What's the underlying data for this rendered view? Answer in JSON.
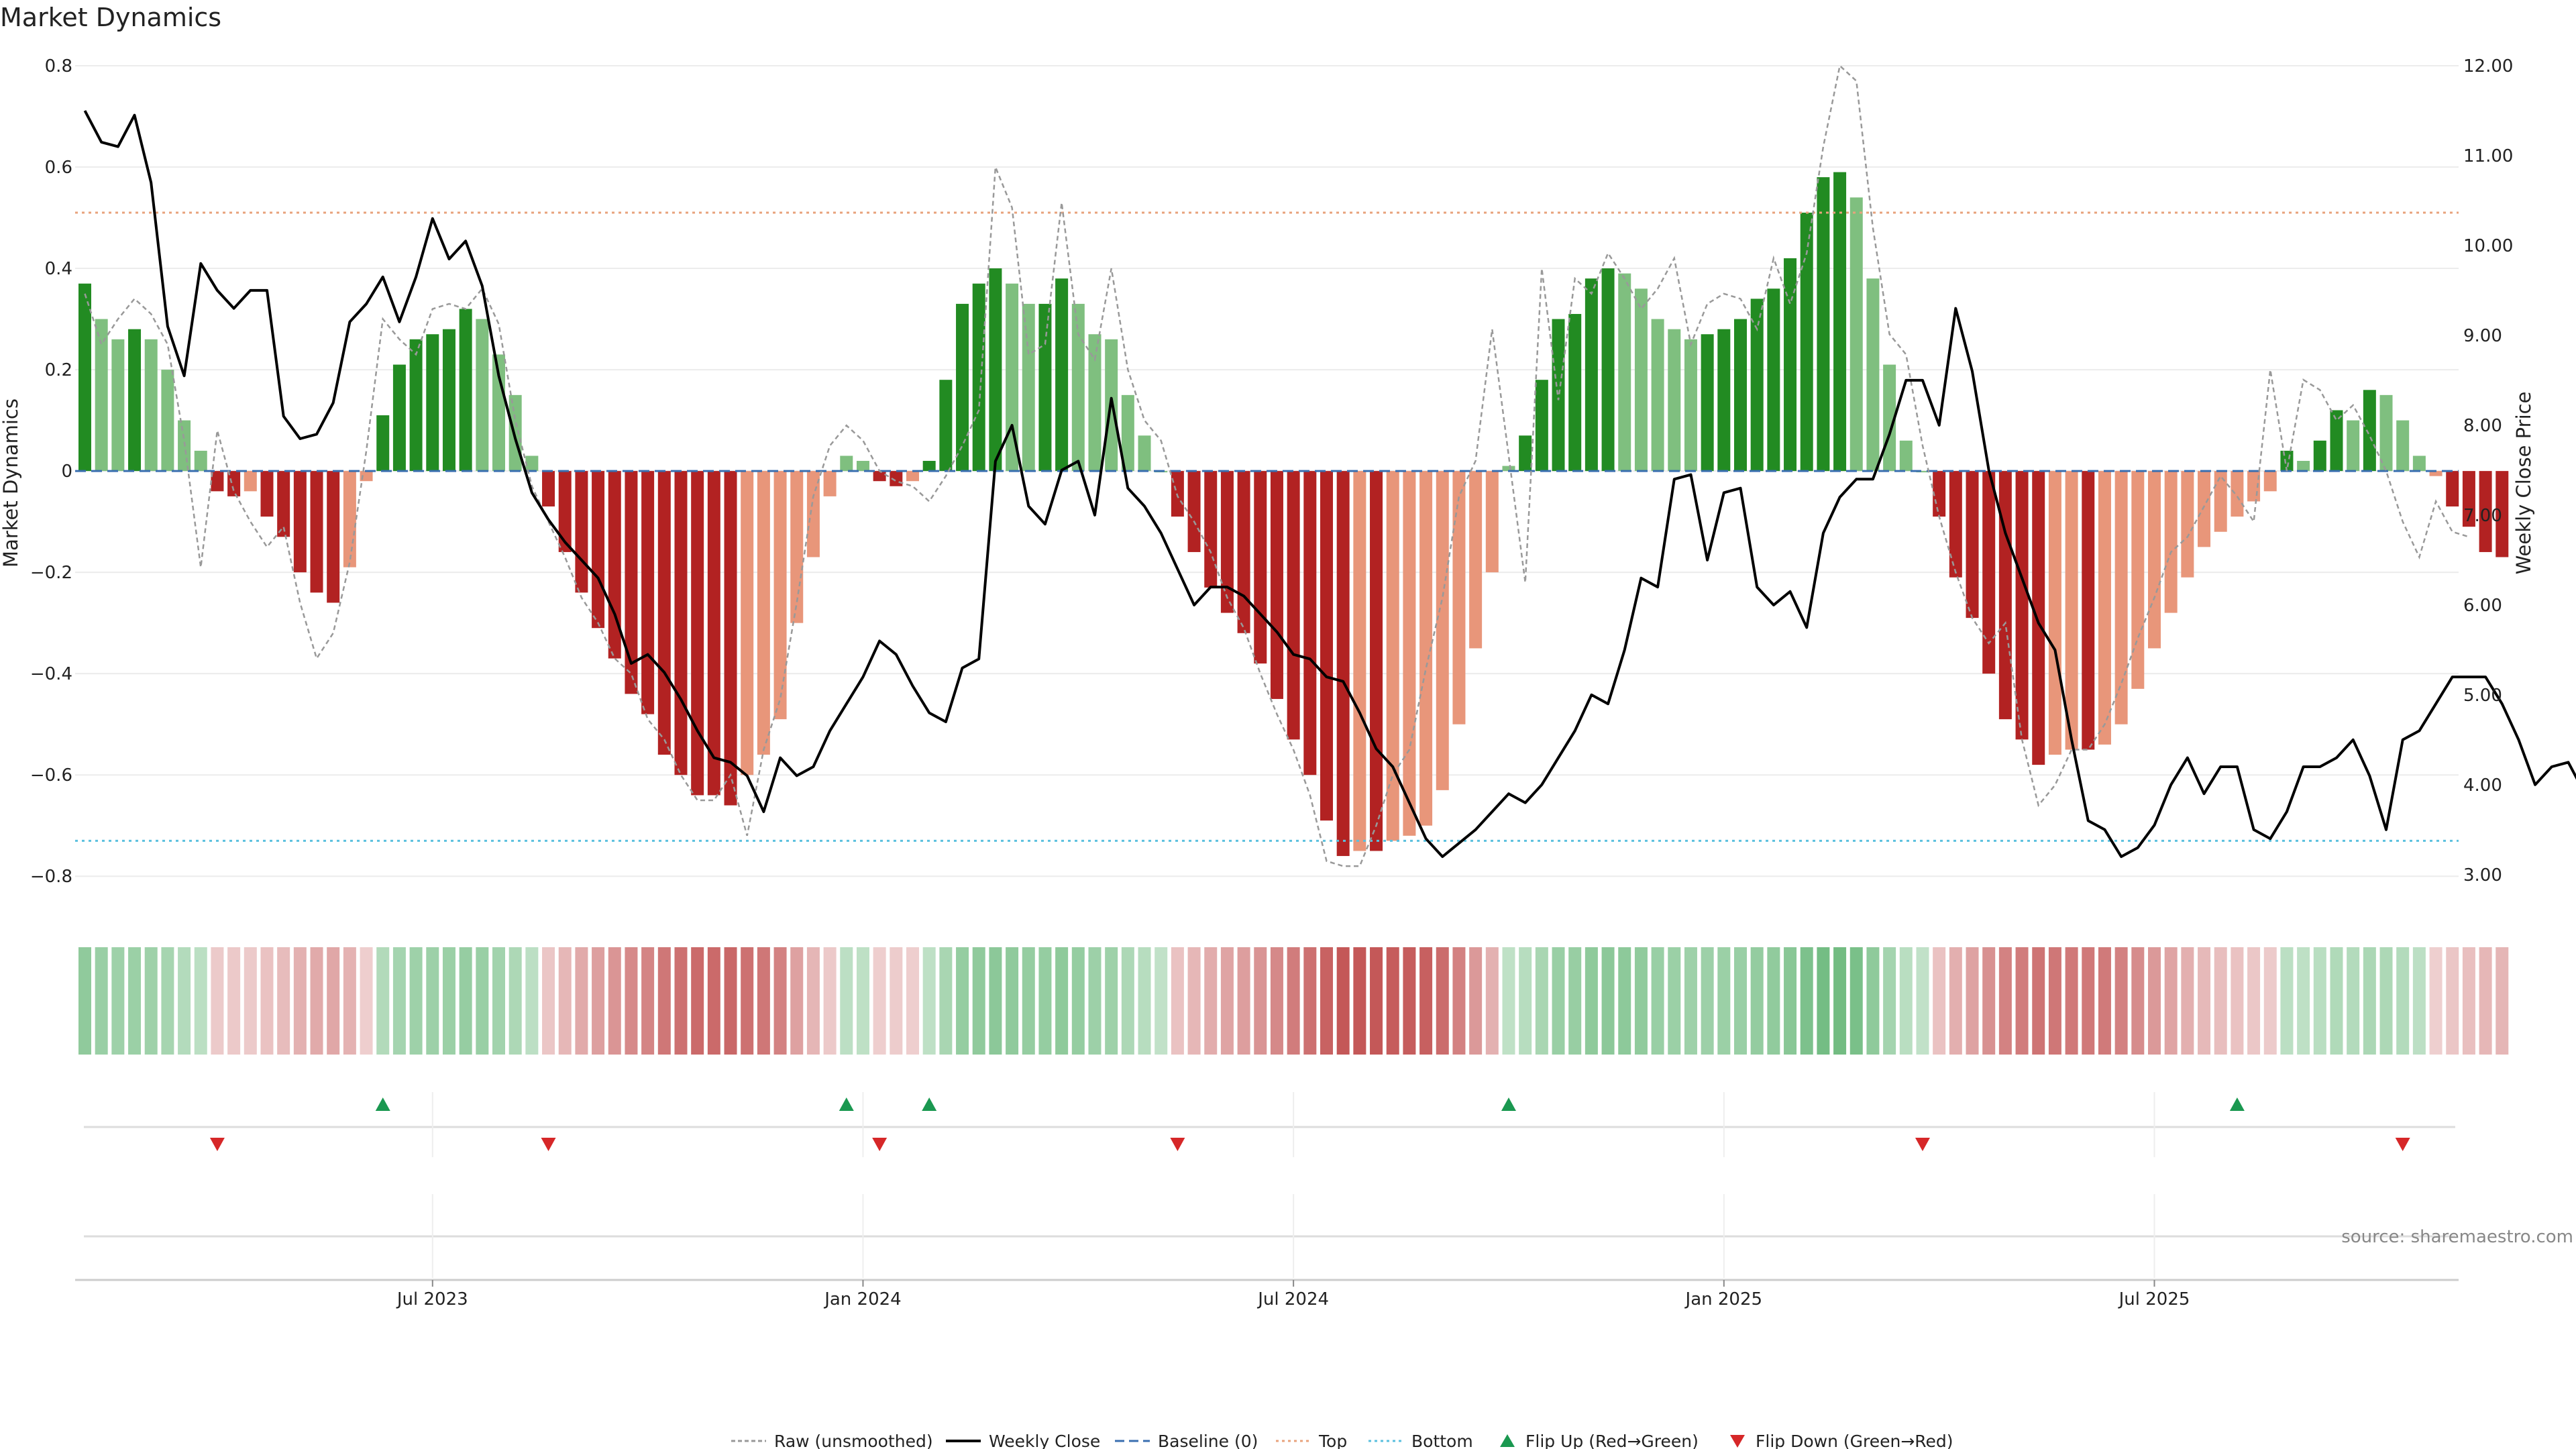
{
  "page": {
    "title": "Market Dynamics",
    "source": "source: sharemaestro.com"
  },
  "colors": {
    "strong_green": "#228b22",
    "light_green": "#7fbf7f",
    "strong_red": "#b22222",
    "light_red": "#e8967a",
    "top_line": "#e8a37c",
    "bottom_line": "#5bc0de",
    "baseline": "#3a6fb0",
    "flip_up": "#1a9850",
    "flip_down": "#d62728",
    "raw_line": "#999999",
    "close_line": "#000000"
  },
  "chart_data": {
    "type": "bar",
    "title": "Market Dynamics",
    "ylabel_left": "Market Dynamics",
    "ylabel_right": "Weekly Close Price",
    "ylim_left": [
      -0.85,
      0.8
    ],
    "ylim_right": [
      2.7,
      12.0
    ],
    "yticks_left": [
      "0.8",
      "0.6",
      "0.4",
      "0.2",
      "0",
      "−0.2",
      "−0.4",
      "−0.6",
      "−0.8"
    ],
    "yticks_left_values": [
      0.8,
      0.6,
      0.4,
      0.2,
      0,
      -0.2,
      -0.4,
      -0.6,
      -0.8
    ],
    "yticks_right": [
      "12.00",
      "11.00",
      "10.00",
      "9.00",
      "8.00",
      "7.00",
      "6.00",
      "5.00",
      "4.00",
      "3.00"
    ],
    "yticks_right_values": [
      12,
      11,
      10,
      9,
      8,
      7,
      6,
      5,
      4,
      3
    ],
    "x_ticks": [
      {
        "label": "Jul 2023",
        "week": 21
      },
      {
        "label": "Jan 2024",
        "week": 47
      },
      {
        "label": "Jul 2024",
        "week": 73
      },
      {
        "label": "Jan 2025",
        "week": 99
      },
      {
        "label": "Jul 2025",
        "week": 125
      }
    ],
    "top_threshold": 0.51,
    "bottom_threshold": -0.73,
    "baseline": 0,
    "bars": [
      0.37,
      0.3,
      0.26,
      0.28,
      0.26,
      0.2,
      0.1,
      0.04,
      -0.04,
      -0.05,
      -0.04,
      -0.09,
      -0.13,
      -0.2,
      -0.24,
      -0.26,
      -0.19,
      -0.02,
      0.11,
      0.21,
      0.26,
      0.27,
      0.28,
      0.32,
      0.3,
      0.23,
      0.15,
      0.03,
      -0.07,
      -0.16,
      -0.24,
      -0.31,
      -0.37,
      -0.44,
      -0.48,
      -0.56,
      -0.6,
      -0.64,
      -0.64,
      -0.66,
      -0.6,
      -0.56,
      -0.49,
      -0.3,
      -0.17,
      -0.05,
      0.03,
      0.02,
      -0.02,
      -0.03,
      -0.02,
      0.02,
      0.18,
      0.33,
      0.37,
      0.4,
      0.37,
      0.33,
      0.33,
      0.38,
      0.33,
      0.27,
      0.26,
      0.15,
      0.07,
      0.0,
      -0.09,
      -0.16,
      -0.23,
      -0.28,
      -0.32,
      -0.38,
      -0.45,
      -0.53,
      -0.6,
      -0.69,
      -0.76,
      -0.75,
      -0.75,
      -0.73,
      -0.72,
      -0.7,
      -0.63,
      -0.5,
      -0.35,
      -0.2,
      0.01,
      0.07,
      0.18,
      0.3,
      0.31,
      0.38,
      0.4,
      0.39,
      0.36,
      0.3,
      0.28,
      0.26,
      0.27,
      0.28,
      0.3,
      0.34,
      0.36,
      0.42,
      0.51,
      0.58,
      0.59,
      0.54,
      0.38,
      0.21,
      0.06,
      0.0,
      -0.09,
      -0.21,
      -0.29,
      -0.4,
      -0.49,
      -0.53,
      -0.58,
      -0.56,
      -0.55,
      -0.55,
      -0.54,
      -0.5,
      -0.43,
      -0.35,
      -0.28,
      -0.21,
      -0.15,
      -0.12,
      -0.09,
      -0.06,
      -0.04,
      0.04,
      0.02,
      0.06,
      0.12,
      0.1,
      0.16,
      0.15,
      0.1,
      0.03,
      -0.01,
      -0.07,
      -0.11,
      -0.16,
      -0.17
    ],
    "raw_series_name": "Raw (unsmoothed)",
    "raw": [
      0.35,
      0.25,
      0.3,
      0.34,
      0.31,
      0.25,
      0.06,
      -0.19,
      0.08,
      -0.04,
      -0.1,
      -0.15,
      -0.11,
      -0.26,
      -0.37,
      -0.32,
      -0.18,
      0.04,
      0.3,
      0.26,
      0.23,
      0.32,
      0.33,
      0.32,
      0.36,
      0.29,
      0.1,
      -0.03,
      -0.1,
      -0.17,
      -0.25,
      -0.3,
      -0.37,
      -0.4,
      -0.49,
      -0.53,
      -0.6,
      -0.65,
      -0.65,
      -0.6,
      -0.72,
      -0.55,
      -0.45,
      -0.26,
      -0.05,
      0.05,
      0.09,
      0.06,
      0.0,
      -0.02,
      -0.03,
      -0.06,
      -0.01,
      0.05,
      0.12,
      0.6,
      0.52,
      0.23,
      0.25,
      0.53,
      0.27,
      0.22,
      0.4,
      0.2,
      0.1,
      0.06,
      -0.05,
      -0.1,
      -0.16,
      -0.25,
      -0.31,
      -0.4,
      -0.48,
      -0.55,
      -0.64,
      -0.77,
      -0.78,
      -0.78,
      -0.7,
      -0.6,
      -0.55,
      -0.39,
      -0.25,
      -0.05,
      0.02,
      0.28,
      0.03,
      -0.22,
      0.4,
      0.14,
      0.38,
      0.35,
      0.43,
      0.38,
      0.32,
      0.36,
      0.42,
      0.25,
      0.33,
      0.35,
      0.34,
      0.28,
      0.42,
      0.33,
      0.43,
      0.64,
      0.8,
      0.77,
      0.48,
      0.27,
      0.23,
      0.05,
      -0.09,
      -0.2,
      -0.29,
      -0.34,
      -0.3,
      -0.53,
      -0.66,
      -0.62,
      -0.55,
      -0.55,
      -0.5,
      -0.42,
      -0.33,
      -0.25,
      -0.16,
      -0.13,
      -0.07,
      -0.01,
      -0.05,
      -0.1,
      0.2,
      0.0,
      0.18,
      0.16,
      0.1,
      0.13,
      0.07,
      0.0,
      -0.1,
      -0.17,
      -0.06,
      -0.12,
      -0.13
    ],
    "close_series_name": "Weekly Close",
    "close": [
      11.5,
      11.15,
      11.1,
      11.45,
      10.7,
      9.1,
      8.55,
      9.8,
      9.5,
      9.3,
      9.5,
      9.5,
      8.1,
      7.85,
      7.9,
      8.25,
      9.15,
      9.35,
      9.65,
      9.15,
      9.65,
      10.3,
      9.85,
      10.05,
      9.55,
      8.55,
      7.85,
      7.25,
      6.95,
      6.7,
      6.5,
      6.3,
      5.9,
      5.35,
      5.45,
      5.25,
      4.95,
      4.6,
      4.3,
      4.25,
      4.1,
      3.7,
      4.3,
      4.1,
      4.2,
      4.6,
      4.9,
      5.2,
      5.6,
      5.45,
      5.1,
      4.8,
      4.7,
      5.3,
      5.4,
      7.6,
      8.0,
      7.1,
      6.9,
      7.5,
      7.6,
      7.0,
      8.3,
      7.3,
      7.1,
      6.8,
      6.4,
      6.0,
      6.2,
      6.2,
      6.1,
      5.9,
      5.7,
      5.45,
      5.4,
      5.2,
      5.15,
      4.8,
      4.4,
      4.2,
      3.8,
      3.4,
      3.2,
      3.35,
      3.5,
      3.7,
      3.9,
      3.8,
      4.0,
      4.3,
      4.6,
      5.0,
      4.9,
      5.5,
      6.3,
      6.2,
      7.4,
      7.45,
      6.5,
      7.25,
      7.3,
      6.2,
      6.0,
      6.15,
      5.75,
      6.8,
      7.2,
      7.4,
      7.4,
      7.9,
      8.5,
      8.5,
      8.0,
      9.3,
      8.6,
      7.5,
      6.8,
      6.3,
      5.8,
      5.5,
      4.5,
      3.6,
      3.5,
      3.2,
      3.3,
      3.55,
      4.0,
      4.3,
      3.9,
      4.2,
      4.2,
      3.5,
      3.4,
      3.7,
      4.2,
      4.2,
      4.3,
      4.5,
      4.1,
      3.5,
      4.5,
      4.6,
      4.9,
      5.2,
      5.2,
      5.2,
      4.9,
      4.5,
      4.0,
      4.2,
      4.25,
      3.9,
      4.0
    ],
    "baseline_label": "Baseline (0)",
    "top_label": "Top",
    "bottom_label": "Bottom",
    "flip_up_label": "Flip Up (Red→Green)",
    "flip_down_label": "Flip Down (Green→Red)",
    "flip_up_weeks": [
      18,
      46,
      51,
      86,
      130
    ],
    "flip_down_weeks": [
      8,
      28,
      48,
      66,
      111,
      140
    ]
  },
  "legend": [
    {
      "key": "raw",
      "label": "Raw (unsmoothed)"
    },
    {
      "key": "close",
      "label": "Weekly Close"
    },
    {
      "key": "baseline",
      "label": "Baseline (0)"
    },
    {
      "key": "top",
      "label": "Top"
    },
    {
      "key": "bottom",
      "label": "Bottom"
    },
    {
      "key": "flip_up",
      "label": "Flip Up (Red→Green)"
    },
    {
      "key": "flip_down",
      "label": "Flip Down (Green→Red)"
    }
  ]
}
